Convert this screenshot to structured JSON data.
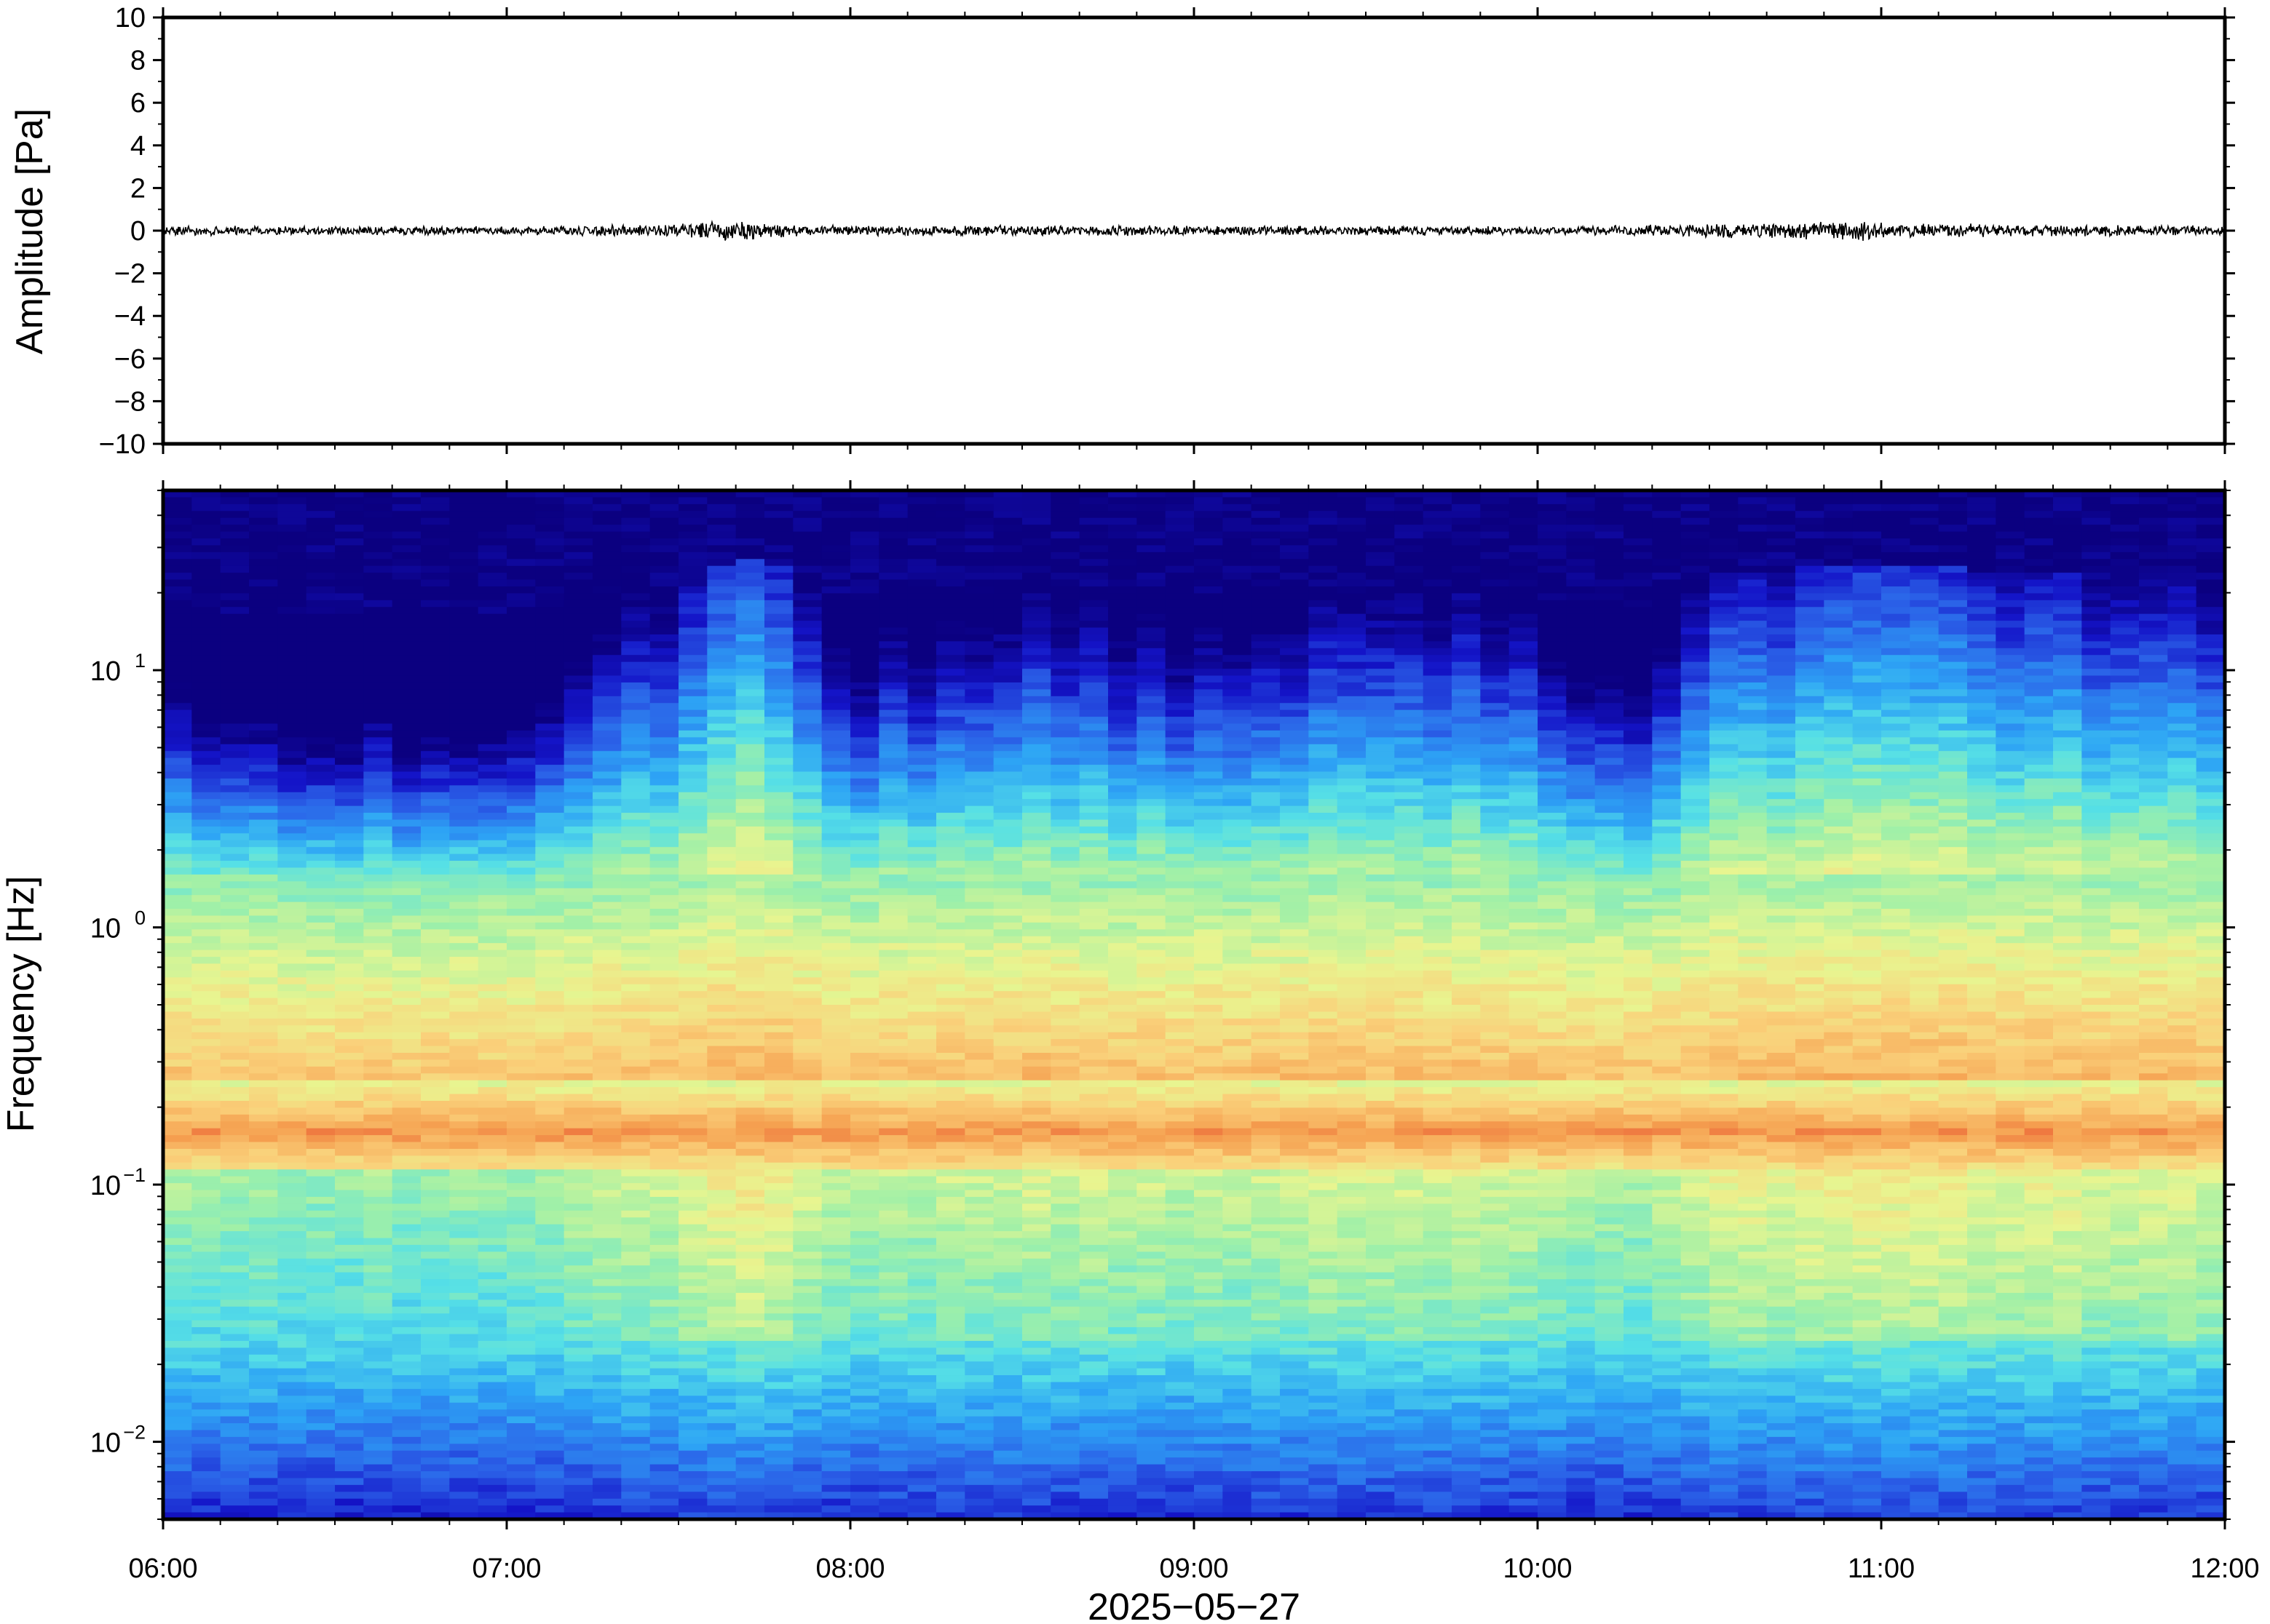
{
  "chart_data": [
    {
      "type": "line",
      "panel": "waveform",
      "ylabel": "Amplitude [Pa]",
      "ylim": [
        -10,
        10
      ],
      "yticks": [
        "10",
        "8",
        "6",
        "4",
        "2",
        "0",
        "−2",
        "−4",
        "−6",
        "−8",
        "−10"
      ],
      "x_range": [
        "06:00",
        "12:00"
      ],
      "series": [
        {
          "envelope_x": [
            "06:00",
            "06:30",
            "07:00",
            "07:25",
            "07:35",
            "07:40",
            "07:45",
            "08:00",
            "08:30",
            "09:00",
            "09:30",
            "10:00",
            "10:30",
            "10:50",
            "10:55",
            "11:00",
            "11:30",
            "12:00"
          ],
          "envelope_amplitude": [
            0.25,
            0.22,
            0.22,
            0.3,
            0.45,
            0.7,
            0.4,
            0.25,
            0.28,
            0.25,
            0.25,
            0.22,
            0.35,
            0.45,
            0.55,
            0.4,
            0.3,
            0.25
          ]
        }
      ]
    },
    {
      "type": "heatmap",
      "panel": "spectrogram",
      "ylabel": "Frequency [Hz]",
      "yscale": "log",
      "ylim": [
        0.005,
        50
      ],
      "yticks": [
        {
          "base": "10",
          "exp": "−2",
          "value": 0.01
        },
        {
          "base": "10",
          "exp": "−1",
          "value": 0.1
        },
        {
          "base": "10",
          "exp": "0",
          "value": 1
        },
        {
          "base": "10",
          "exp": "1",
          "value": 10
        }
      ],
      "colormap": "jet",
      "colormap_stops": [
        "#0b0080",
        "#1414c8",
        "#2b62e8",
        "#2da4f5",
        "#56e0e6",
        "#9ff0a8",
        "#e8f590",
        "#fad07a",
        "#f5a050",
        "#e85030"
      ],
      "microseism_peak_hz": 0.16,
      "xlabel": "2025−05−27",
      "x_tick_labels": [
        "06:00",
        "07:00",
        "08:00",
        "09:00",
        "10:00",
        "11:00",
        "12:00"
      ],
      "energy_profile": {
        "times": [
          "06:00",
          "06:15",
          "06:30",
          "06:45",
          "07:00",
          "07:10",
          "07:20",
          "07:30",
          "07:40",
          "07:48",
          "08:00",
          "08:15",
          "08:30",
          "08:45",
          "09:00",
          "09:15",
          "09:30",
          "09:45",
          "10:00",
          "10:10",
          "10:20",
          "10:30",
          "10:45",
          "10:50",
          "11:00",
          "11:15",
          "11:30",
          "11:45",
          "12:00"
        ],
        "level": [
          0.35,
          0.3,
          0.25,
          0.25,
          0.25,
          0.4,
          0.55,
          0.65,
          0.95,
          0.8,
          0.45,
          0.5,
          0.6,
          0.55,
          0.5,
          0.55,
          0.6,
          0.6,
          0.5,
          0.4,
          0.4,
          0.7,
          0.8,
          0.9,
          0.85,
          0.8,
          0.75,
          0.65,
          0.7
        ]
      }
    }
  ]
}
